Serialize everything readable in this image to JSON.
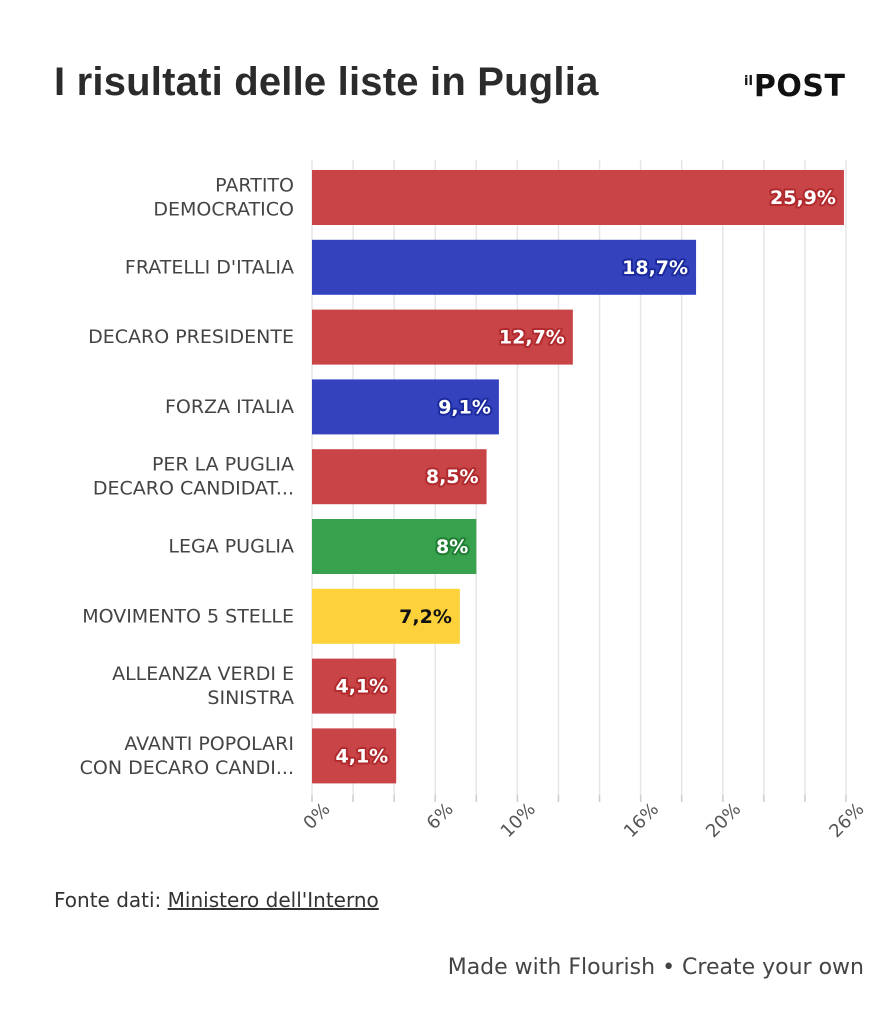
{
  "header": {
    "title": "I risultati delle liste in Puglia",
    "logo_small": "il",
    "logo_main": "POST"
  },
  "chart_data": {
    "type": "bar",
    "orientation": "horizontal",
    "title": "I risultati delle liste in Puglia",
    "categories": [
      [
        "PARTITO",
        "DEMOCRATICO"
      ],
      [
        "FRATELLI D'ITALIA"
      ],
      [
        "DECARO PRESIDENTE"
      ],
      [
        "FORZA ITALIA"
      ],
      [
        "PER LA PUGLIA",
        "DECARO CANDIDAT..."
      ],
      [
        "LEGA PUGLIA"
      ],
      [
        "MOVIMENTO 5 STELLE"
      ],
      [
        "ALLEANZA VERDI E",
        "SINISTRA"
      ],
      [
        "AVANTI POPOLARI",
        "CON DECARO CANDI..."
      ]
    ],
    "values": [
      25.9,
      18.7,
      12.7,
      9.1,
      8.5,
      8,
      7.2,
      4.1,
      4.1
    ],
    "value_labels": [
      "25,9%",
      "18,7%",
      "12,7%",
      "9,1%",
      "8,5%",
      "8%",
      "7,2%",
      "4,1%",
      "4,1%"
    ],
    "colors": [
      "#c84446",
      "#3443bd",
      "#c84446",
      "#3443bd",
      "#c84446",
      "#38a14d",
      "#fdd13a",
      "#c84446",
      "#c84446"
    ],
    "label_colors": [
      "#ffffff",
      "#ffffff",
      "#ffffff",
      "#ffffff",
      "#ffffff",
      "#ffffff",
      "#111111",
      "#ffffff",
      "#ffffff"
    ],
    "label_outlines": [
      "#b02a2e",
      "#1b2a9c",
      "#b02a2e",
      "#1b2a9c",
      "#b02a2e",
      "#1f7d34",
      "#fdd13a",
      "#b02a2e",
      "#b02a2e"
    ],
    "xlim": [
      0,
      26
    ],
    "gridlines": [
      0,
      2,
      4,
      6,
      8,
      10,
      12,
      14,
      16,
      18,
      20,
      22,
      24,
      26
    ],
    "xticks": [
      0,
      6,
      10,
      16,
      20,
      26
    ],
    "xtick_labels": [
      "0%",
      "6%",
      "10%",
      "16%",
      "20%",
      "26%"
    ],
    "xlabel": "",
    "ylabel": ""
  },
  "source": {
    "prefix": "Fonte dati: ",
    "link_text": "Ministero dell'Interno"
  },
  "footer": {
    "text": "Made with Flourish • Create your own"
  }
}
